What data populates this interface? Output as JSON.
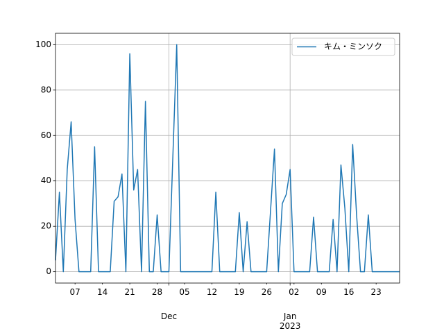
{
  "chart_data": {
    "type": "line",
    "x": [
      "2022-11-02",
      "2022-11-03",
      "2022-11-04",
      "2022-11-05",
      "2022-11-06",
      "2022-11-07",
      "2022-11-08",
      "2022-11-09",
      "2022-11-10",
      "2022-11-11",
      "2022-11-12",
      "2022-11-13",
      "2022-11-14",
      "2022-11-15",
      "2022-11-16",
      "2022-11-17",
      "2022-11-18",
      "2022-11-19",
      "2022-11-20",
      "2022-11-21",
      "2022-11-22",
      "2022-11-23",
      "2022-11-24",
      "2022-11-25",
      "2022-11-26",
      "2022-11-27",
      "2022-11-28",
      "2022-11-29",
      "2022-11-30",
      "2022-12-01",
      "2022-12-02",
      "2022-12-03",
      "2022-12-04",
      "2022-12-05",
      "2022-12-06",
      "2022-12-07",
      "2022-12-08",
      "2022-12-09",
      "2022-12-10",
      "2022-12-11",
      "2022-12-12",
      "2022-12-13",
      "2022-12-14",
      "2022-12-15",
      "2022-12-16",
      "2022-12-17",
      "2022-12-18",
      "2022-12-19",
      "2022-12-20",
      "2022-12-21",
      "2022-12-22",
      "2022-12-23",
      "2022-12-24",
      "2022-12-25",
      "2022-12-26",
      "2022-12-27",
      "2022-12-28",
      "2022-12-29",
      "2022-12-30",
      "2022-12-31",
      "2023-01-01",
      "2023-01-02",
      "2023-01-03",
      "2023-01-04",
      "2023-01-05",
      "2023-01-06",
      "2023-01-07",
      "2023-01-08",
      "2023-01-09",
      "2023-01-10",
      "2023-01-11",
      "2023-01-12",
      "2023-01-13",
      "2023-01-14",
      "2023-01-15",
      "2023-01-16",
      "2023-01-17",
      "2023-01-18",
      "2023-01-19",
      "2023-01-20",
      "2023-01-21",
      "2023-01-22",
      "2023-01-23",
      "2023-01-24",
      "2023-01-25",
      "2023-01-26",
      "2023-01-27",
      "2023-01-28",
      "2023-01-29"
    ],
    "series": [
      {
        "name": "キム・ミンソク",
        "color": "#1f77b4",
        "values": [
          5,
          35,
          0,
          45,
          66,
          23,
          0,
          0,
          0,
          0,
          55,
          0,
          0,
          0,
          0,
          31,
          33,
          43,
          0,
          96,
          36,
          45,
          0,
          75,
          0,
          0,
          25,
          0,
          0,
          0,
          50,
          100,
          0,
          0,
          0,
          0,
          0,
          0,
          0,
          0,
          0,
          35,
          0,
          0,
          0,
          0,
          0,
          26,
          0,
          22,
          0,
          0,
          0,
          0,
          0,
          27,
          54,
          0,
          30,
          34,
          45,
          0,
          0,
          0,
          0,
          0,
          24,
          0,
          0,
          0,
          0,
          23,
          0,
          47,
          28,
          0,
          56,
          25,
          0,
          0,
          25,
          0,
          0,
          0,
          0,
          0,
          0,
          0,
          0
        ]
      }
    ],
    "xlim": [
      "2022-11-02",
      "2023-01-29"
    ],
    "xticks": [
      {
        "value": "2022-11-07",
        "label": "07"
      },
      {
        "value": "2022-11-14",
        "label": "14"
      },
      {
        "value": "2022-11-21",
        "label": "21"
      },
      {
        "value": "2022-11-28",
        "label": "28"
      },
      {
        "value": "2022-12-01",
        "label": "Dec"
      },
      {
        "value": "2022-12-05",
        "label": "05"
      },
      {
        "value": "2022-12-12",
        "label": "12"
      },
      {
        "value": "2022-12-19",
        "label": "19"
      },
      {
        "value": "2022-12-26",
        "label": "26"
      },
      {
        "value": "2023-01-01",
        "label": "Jan\n2023"
      },
      {
        "value": "2023-01-02",
        "label": "02"
      },
      {
        "value": "2023-01-09",
        "label": "09"
      },
      {
        "value": "2023-01-16",
        "label": "16"
      },
      {
        "value": "2023-01-23",
        "label": "23"
      }
    ],
    "ylim": [
      -5,
      105
    ],
    "yticks": [
      0,
      20,
      40,
      60,
      80,
      100
    ],
    "grid": true,
    "legend": "upper right"
  }
}
